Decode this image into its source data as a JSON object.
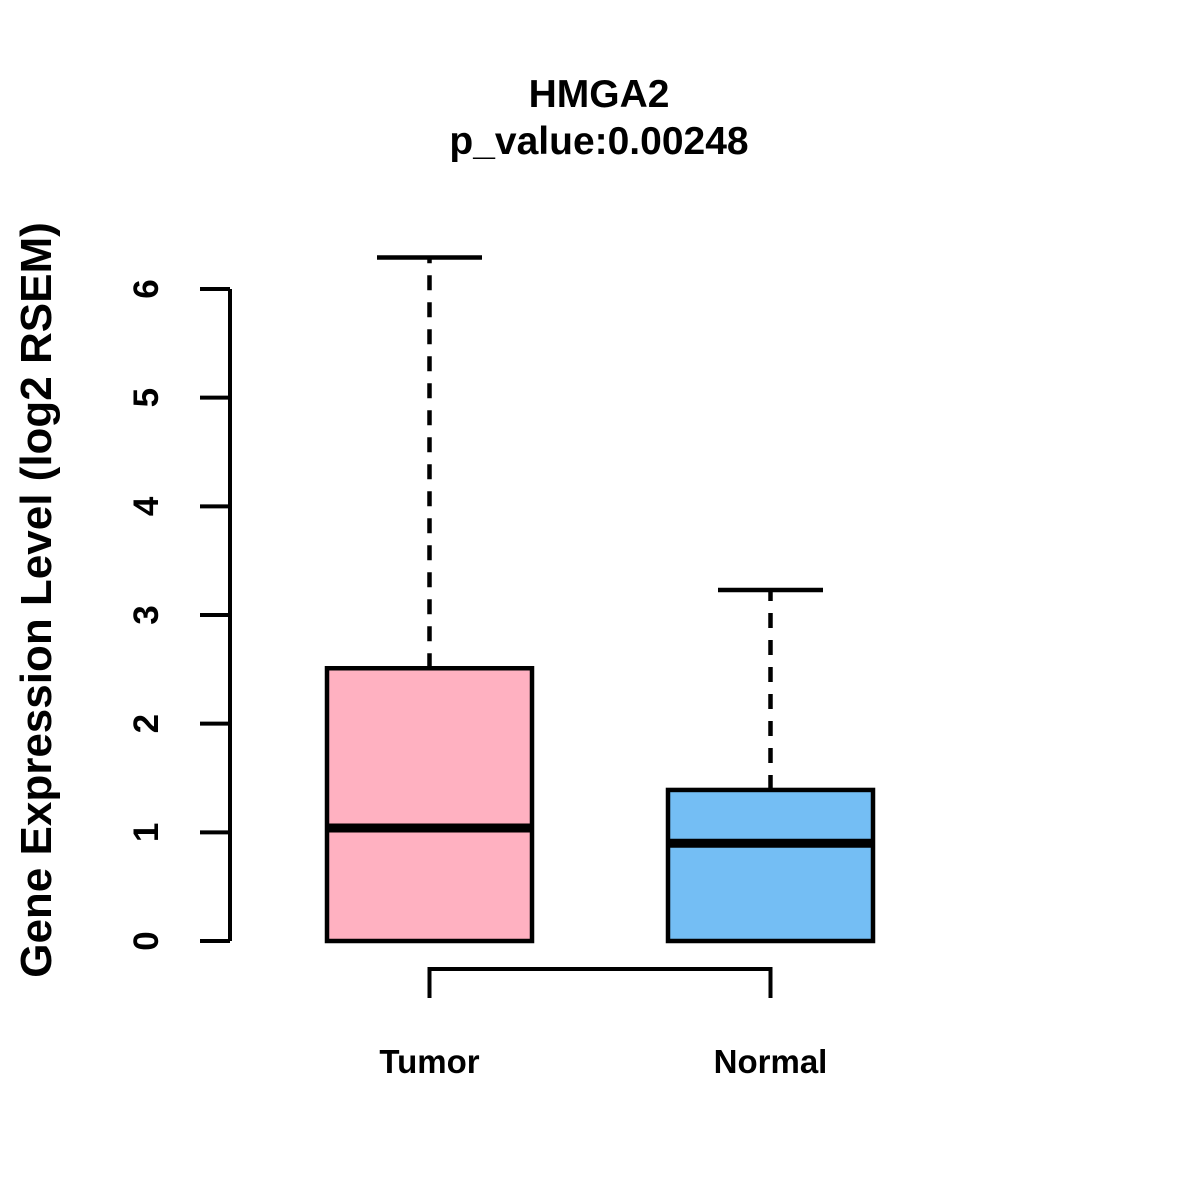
{
  "colors": {
    "background": "#FFFFFF",
    "axis": "#000000",
    "text": "#000000",
    "tumor_box_fill": "#FFB1C1",
    "normal_box_fill": "#74BEF4"
  },
  "title": {
    "gene": "HMGA2",
    "p_value": "p_value:0.00248"
  },
  "axes": {
    "y_label": "Gene Expression Level (log2 RSEM)",
    "y_tick_labels": [
      "0",
      "1",
      "2",
      "3",
      "4",
      "5",
      "6"
    ],
    "x_category_labels": [
      "Tumor",
      "Normal"
    ]
  },
  "chart_data": {
    "type": "boxplot",
    "title": "HMGA2",
    "subtitle": "p_value:0.00248",
    "ylabel": "Gene Expression Level (log2 RSEM)",
    "xlabel": "",
    "categories": [
      "Tumor",
      "Normal"
    ],
    "series": [
      {
        "name": "Tumor",
        "color": "#FFB1C1",
        "min": 0,
        "q1": 0,
        "median": 1.04,
        "q3": 2.51,
        "max": 6.29
      },
      {
        "name": "Normal",
        "color": "#74BEF4",
        "min": 0,
        "q1": 0,
        "median": 0.9,
        "q3": 1.39,
        "max": 3.23
      }
    ],
    "yticks": [
      0,
      1,
      2,
      3,
      4,
      5,
      6
    ],
    "ylim": [
      0,
      6.5
    ],
    "grid": false,
    "legend": "none",
    "whisker_style": "dashed"
  }
}
